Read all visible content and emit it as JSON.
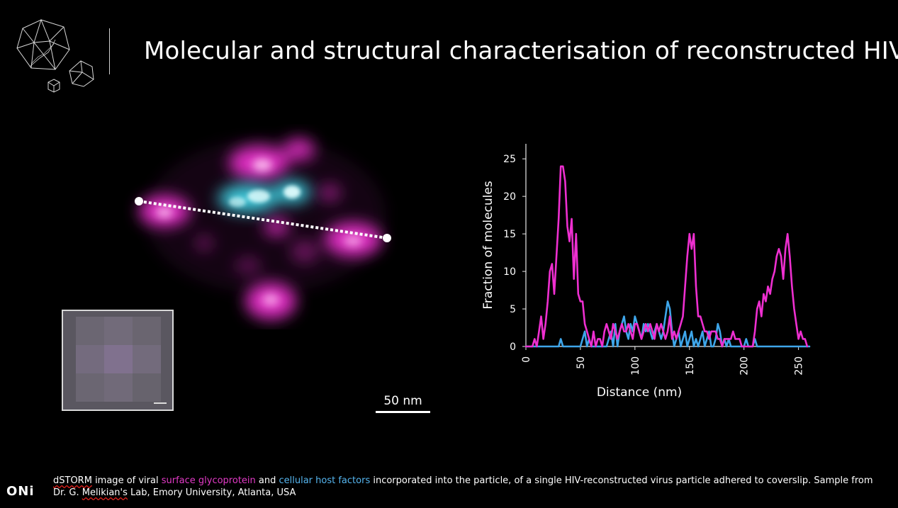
{
  "title": "Molecular and structural characterisation of reconstructed HIV",
  "colors": {
    "magenta": "#ee2fd0",
    "cyan": "#5fd8ea",
    "blue": "#3ea6ea",
    "background": "#000000"
  },
  "scale_bar": {
    "label": "50 nm"
  },
  "brand": "ONi",
  "caption": {
    "term": "dSTORM",
    "text1": " image of viral ",
    "surface": "surface glycoprotein",
    "text2": " and ",
    "host": "cellular host factors",
    "text3": " incorporated into the particle, of a single HIV-reconstructed virus particle adhered to coverslip. Sample from",
    "line2_a": "Dr. G. ",
    "line2_name": "Melikian's",
    "line2_b": " Lab, Emory University, Atlanta, USA"
  },
  "chart_data": {
    "type": "line",
    "xlabel": "Distance (nm)",
    "ylabel": "Fraction of molecules",
    "xlim": [
      0,
      260
    ],
    "ylim": [
      0,
      27
    ],
    "xticks": [
      0,
      50,
      100,
      150,
      200,
      250
    ],
    "yticks": [
      0,
      5,
      10,
      15,
      20,
      25
    ],
    "series": [
      {
        "name": "surface glycoprotein",
        "color": "#ee2fd0",
        "x": [
          0,
          6,
          8,
          10,
          12,
          14,
          16,
          18,
          20,
          22,
          24,
          26,
          28,
          30,
          32,
          34,
          36,
          38,
          40,
          42,
          44,
          46,
          48,
          50,
          52,
          54,
          56,
          58,
          60,
          62,
          64,
          66,
          68,
          70,
          72,
          74,
          76,
          78,
          80,
          82,
          84,
          86,
          88,
          90,
          92,
          94,
          96,
          98,
          100,
          102,
          104,
          106,
          108,
          110,
          112,
          114,
          116,
          118,
          120,
          122,
          124,
          126,
          128,
          130,
          132,
          134,
          136,
          138,
          140,
          142,
          144,
          146,
          148,
          150,
          152,
          154,
          156,
          158,
          160,
          162,
          164,
          166,
          168,
          170,
          172,
          174,
          176,
          178,
          180,
          182,
          184,
          186,
          188,
          190,
          192,
          194,
          196,
          198,
          200,
          202,
          204,
          206,
          208,
          210,
          212,
          214,
          216,
          218,
          220,
          222,
          224,
          226,
          228,
          230,
          232,
          234,
          236,
          238,
          240,
          242,
          244,
          246,
          248,
          250,
          252,
          254,
          256,
          258
        ],
        "values": [
          0,
          0,
          1,
          0,
          2,
          4,
          1,
          3,
          6,
          10,
          11,
          7,
          12,
          17,
          24,
          24,
          22,
          16,
          14,
          17,
          9,
          15,
          7,
          6,
          6,
          3,
          2,
          1,
          0,
          2,
          0,
          1,
          1,
          0,
          2,
          3,
          2,
          1,
          3,
          2,
          1,
          2,
          3,
          2,
          2,
          3,
          2,
          1,
          3,
          3,
          2,
          1,
          2,
          3,
          2,
          3,
          2,
          1,
          3,
          2,
          3,
          2,
          1,
          2,
          4,
          1,
          2,
          1,
          2,
          3,
          4,
          8,
          12,
          15,
          13,
          15,
          8,
          4,
          4,
          3,
          2,
          2,
          1,
          2,
          2,
          2,
          1,
          1,
          0,
          1,
          1,
          1,
          1,
          2,
          1,
          1,
          1,
          0,
          0,
          0,
          0,
          0,
          0,
          2,
          5,
          6,
          4,
          7,
          6,
          8,
          7,
          9,
          10,
          12,
          13,
          12,
          9,
          13,
          15,
          12,
          8,
          5,
          3,
          1,
          2,
          1,
          1,
          0
        ]
      },
      {
        "name": "cellular host factors",
        "color": "#3ea6ea",
        "x": [
          0,
          30,
          32,
          34,
          36,
          50,
          52,
          54,
          56,
          58,
          60,
          62,
          64,
          66,
          68,
          70,
          72,
          74,
          76,
          78,
          80,
          82,
          84,
          86,
          88,
          90,
          92,
          94,
          96,
          98,
          100,
          102,
          104,
          106,
          108,
          110,
          112,
          114,
          116,
          118,
          120,
          122,
          124,
          126,
          128,
          130,
          132,
          134,
          136,
          138,
          140,
          142,
          144,
          146,
          148,
          150,
          152,
          154,
          156,
          158,
          160,
          162,
          164,
          166,
          168,
          170,
          172,
          174,
          176,
          178,
          180,
          182,
          184,
          186,
          188,
          190,
          200,
          202,
          204,
          206,
          208,
          210,
          212,
          214,
          260
        ],
        "values": [
          0,
          0,
          1,
          0,
          0,
          0,
          1,
          2,
          0,
          1,
          0,
          0,
          0,
          0,
          0,
          0,
          0,
          0,
          1,
          2,
          0,
          3,
          0,
          2,
          3,
          4,
          2,
          1,
          3,
          2,
          4,
          3,
          2,
          1,
          3,
          2,
          3,
          2,
          1,
          2,
          3,
          2,
          1,
          2,
          4,
          6,
          5,
          2,
          0,
          1,
          2,
          0,
          1,
          2,
          0,
          1,
          2,
          0,
          1,
          0,
          1,
          2,
          0,
          1,
          2,
          0,
          0,
          1,
          3,
          2,
          0,
          1,
          0,
          1,
          0,
          0,
          0,
          1,
          0,
          0,
          0,
          1,
          0,
          0,
          0
        ]
      }
    ]
  }
}
